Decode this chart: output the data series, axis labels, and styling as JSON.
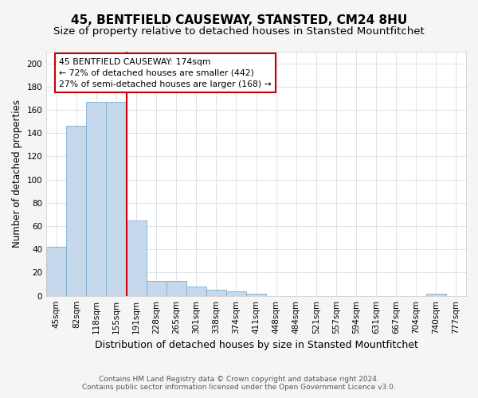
{
  "title1": "45, BENTFIELD CAUSEWAY, STANSTED, CM24 8HU",
  "title2": "Size of property relative to detached houses in Stansted Mountfitchet",
  "xlabel": "Distribution of detached houses by size in Stansted Mountfitchet",
  "ylabel": "Number of detached properties",
  "footer1": "Contains HM Land Registry data © Crown copyright and database right 2024.",
  "footer2": "Contains public sector information licensed under the Open Government Licence v3.0.",
  "bar_labels": [
    "45sqm",
    "82sqm",
    "118sqm",
    "155sqm",
    "191sqm",
    "228sqm",
    "265sqm",
    "301sqm",
    "338sqm",
    "374sqm",
    "411sqm",
    "448sqm",
    "484sqm",
    "521sqm",
    "557sqm",
    "594sqm",
    "631sqm",
    "667sqm",
    "704sqm",
    "740sqm",
    "777sqm"
  ],
  "bar_values": [
    42,
    146,
    167,
    167,
    65,
    13,
    13,
    8,
    5,
    4,
    2,
    0,
    0,
    0,
    0,
    0,
    0,
    0,
    0,
    2,
    0
  ],
  "bar_color": "#c6d9ec",
  "bar_edge_color": "#7aaed0",
  "vline_color": "#cc0000",
  "annotation_line1": "45 BENTFIELD CAUSEWAY: 174sqm",
  "annotation_line2": "← 72% of detached houses are smaller (442)",
  "annotation_line3": "27% of semi-detached houses are larger (168) →",
  "annotation_box_color": "#ffffff",
  "annotation_box_edge": "#cc0000",
  "ylim": [
    0,
    210
  ],
  "yticks": [
    0,
    20,
    40,
    60,
    80,
    100,
    120,
    140,
    160,
    180,
    200
  ],
  "bg_color": "#f5f5f5",
  "plot_bg_color": "#ffffff",
  "grid_color": "#d0d8e0",
  "title1_fontsize": 11,
  "title2_fontsize": 9.5,
  "xlabel_fontsize": 9,
  "ylabel_fontsize": 8.5,
  "tick_fontsize": 7.5,
  "footer_fontsize": 6.5
}
